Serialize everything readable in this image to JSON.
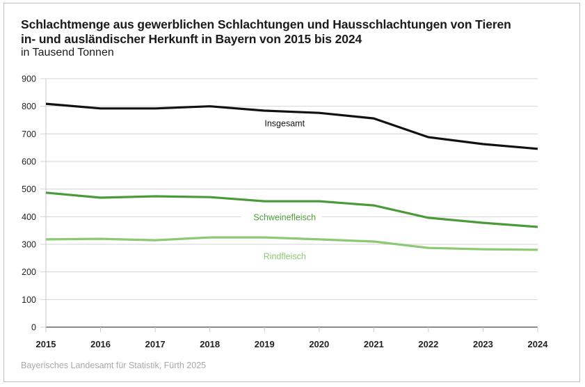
{
  "chart_data": {
    "type": "line",
    "title": "Schlachtmenge aus gewerblichen Schlachtungen und Hausschlachtungen von Tieren in- und ausländischer Herkunft in Bayern von 2015 bis 2024",
    "title_lines": [
      "Schlachtmenge aus gewerblichen Schlachtungen und Hausschlachtungen von Tieren",
      "in- und ausländischer Herkunft in Bayern von 2015 bis 2024"
    ],
    "subtitle": "in Tausend Tonnen",
    "xlabel": "",
    "ylabel": "",
    "x": [
      "2015",
      "2016",
      "2017",
      "2018",
      "2019",
      "2020",
      "2021",
      "2022",
      "2023",
      "2024"
    ],
    "ylim": [
      0,
      900
    ],
    "yticks": [
      "0",
      "100",
      "200",
      "300",
      "400",
      "500",
      "600",
      "700",
      "800",
      "900"
    ],
    "grid": true,
    "legend": "inline-labels",
    "series": [
      {
        "name": "Insgesamt",
        "color": "#111111",
        "values": [
          809,
          792,
          792,
          800,
          784,
          776,
          756,
          688,
          663,
          646
        ]
      },
      {
        "name": "Schweinefleisch",
        "color": "#4a9a3a",
        "values": [
          487,
          469,
          474,
          471,
          456,
          456,
          441,
          396,
          378,
          363
        ]
      },
      {
        "name": "Rindfleisch",
        "color": "#8cc973",
        "values": [
          318,
          320,
          315,
          325,
          325,
          318,
          310,
          287,
          282,
          280
        ]
      }
    ],
    "source": "Bayerisches Landesamt für Statistik, Fürth 2025"
  }
}
